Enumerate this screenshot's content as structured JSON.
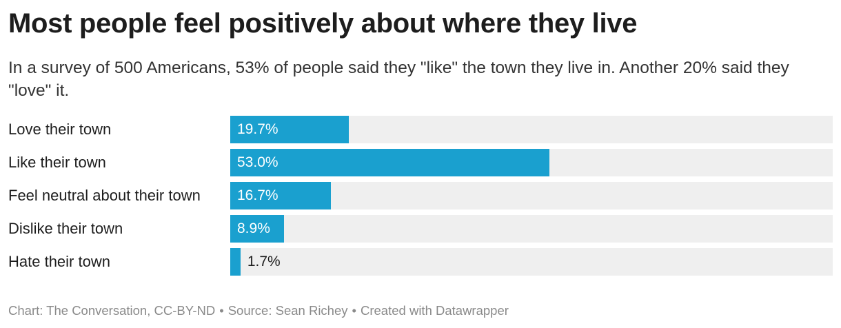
{
  "title": "Most people feel positively about where they live",
  "subtitle": "In a survey of 500 Americans, 53% of people said they \"like\" the town they live in. Another 20% said they \"love\" it.",
  "colors": {
    "bar": "#1aa0cf",
    "track": "#efefef",
    "label_inside": "#ffffff",
    "label_outside": "#1d1d1d"
  },
  "chart_data": {
    "type": "bar",
    "orientation": "horizontal",
    "title": "Most people feel positively about where they live",
    "categories": [
      "Love their town",
      "Like their town",
      "Feel neutral about their town",
      "Dislike their town",
      "Hate their town"
    ],
    "values": [
      19.7,
      53.0,
      16.7,
      8.9,
      1.7
    ],
    "value_labels": [
      "19.7%",
      "53.0%",
      "16.7%",
      "8.9%",
      "1.7%"
    ],
    "xlim": [
      0,
      100
    ],
    "unit": "%"
  },
  "footer": {
    "chart": "Chart: The Conversation, CC-BY-ND",
    "separator": "•",
    "source": "Source: Sean Richey",
    "created": "Created with Datawrapper"
  }
}
